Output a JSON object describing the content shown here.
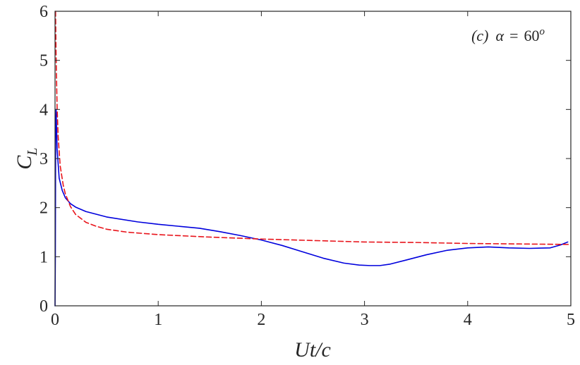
{
  "chart_data": {
    "type": "line",
    "title": "",
    "annotation": {
      "panel": "(c)",
      "symbol": "α",
      "equals": "=",
      "value": "60",
      "superscript": "o"
    },
    "xlabel": "Ut/c",
    "ylabel": {
      "main": "C",
      "subscript": "L"
    },
    "xlim": [
      0,
      5
    ],
    "ylim": [
      0,
      6
    ],
    "x_ticks": [
      0,
      1,
      2,
      3,
      4,
      5
    ],
    "y_ticks": [
      0,
      1,
      2,
      3,
      4,
      5,
      6
    ],
    "grid": false,
    "legend": "none",
    "series": [
      {
        "color": "#0000dd",
        "style": "solid",
        "x": [
          0,
          0.003,
          0.006,
          0.01,
          0.02,
          0.04,
          0.07,
          0.1,
          0.15,
          0.2,
          0.3,
          0.5,
          0.8,
          1.0,
          1.2,
          1.4,
          1.6,
          1.8,
          2.0,
          2.2,
          2.4,
          2.6,
          2.8,
          2.95,
          3.05,
          3.15,
          3.25,
          3.4,
          3.6,
          3.8,
          4.0,
          4.2,
          4.4,
          4.6,
          4.8,
          4.9,
          4.97
        ],
        "y": [
          0,
          1.0,
          3.5,
          4.0,
          3.2,
          2.6,
          2.35,
          2.2,
          2.08,
          2.01,
          1.92,
          1.81,
          1.71,
          1.66,
          1.62,
          1.58,
          1.51,
          1.43,
          1.34,
          1.23,
          1.1,
          0.97,
          0.87,
          0.83,
          0.82,
          0.82,
          0.85,
          0.93,
          1.04,
          1.13,
          1.18,
          1.2,
          1.18,
          1.17,
          1.18,
          1.24,
          1.3
        ]
      },
      {
        "color": "#e8141b",
        "style": "dashed",
        "x": [
          0.005,
          0.01,
          0.02,
          0.03,
          0.05,
          0.08,
          0.1,
          0.15,
          0.2,
          0.3,
          0.4,
          0.5,
          0.7,
          1.0,
          1.5,
          2.0,
          2.5,
          3.0,
          3.5,
          4.0,
          4.5,
          5.0
        ],
        "y": [
          6.0,
          5.1,
          4.05,
          3.45,
          2.85,
          2.45,
          2.28,
          2.02,
          1.86,
          1.7,
          1.62,
          1.56,
          1.5,
          1.45,
          1.4,
          1.36,
          1.33,
          1.3,
          1.29,
          1.27,
          1.26,
          1.25
        ]
      }
    ]
  }
}
